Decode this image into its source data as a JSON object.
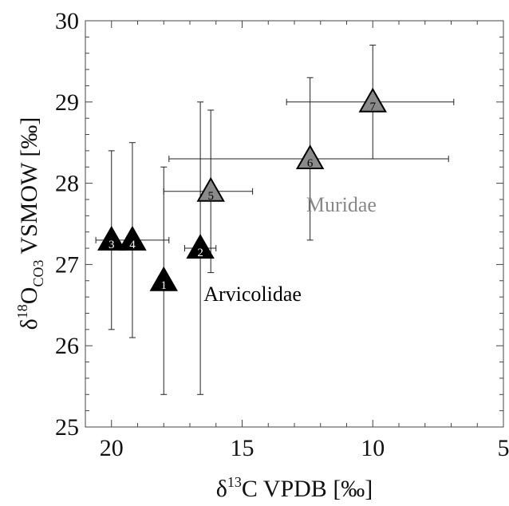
{
  "chart_data": {
    "type": "scatter",
    "title": "",
    "xlabel": {
      "prefix": "δ",
      "sup": "13",
      "rest": "C VPDB [‰]"
    },
    "ylabel": {
      "prefix": "δ",
      "sup": "18",
      "mid": "O",
      "sub": "CO3",
      "rest": " VSMOW [‰]"
    },
    "xlim": [
      21,
      5
    ],
    "ylim": [
      25,
      30
    ],
    "x_reversed": true,
    "grid": false,
    "xticks": [
      "20",
      "15",
      "10",
      "5"
    ],
    "yticks": [
      "25",
      "26",
      "27",
      "28",
      "29",
      "30"
    ],
    "series": [
      {
        "name": "Arvicolidae",
        "color": "#000000",
        "label_color": "#ffffff",
        "points": [
          {
            "id": "1",
            "x": 18.0,
            "y": 26.8,
            "xerr": [
              17.8,
              18.2
            ],
            "yerr": [
              25.4,
              28.2
            ]
          },
          {
            "id": "2",
            "x": 16.6,
            "y": 27.2,
            "xerr": [
              16.0,
              17.2
            ],
            "yerr": [
              25.4,
              29.0
            ]
          },
          {
            "id": "3",
            "x": 20.0,
            "y": 27.3,
            "xerr": [
              19.8,
              20.2
            ],
            "yerr": [
              26.2,
              28.4
            ]
          },
          {
            "id": "4",
            "x": 19.2,
            "y": 27.3,
            "xerr": [
              17.8,
              20.6
            ],
            "yerr": [
              26.1,
              28.5
            ]
          }
        ]
      },
      {
        "name": "Muridae",
        "color": "#8a8a8a",
        "label_color": "#000000",
        "points": [
          {
            "id": "5",
            "x": 16.2,
            "y": 27.9,
            "xerr": [
              14.6,
              18.0
            ],
            "yerr": [
              26.9,
              28.9
            ]
          },
          {
            "id": "6",
            "x": 12.4,
            "y": 28.3,
            "xerr": [
              7.1,
              17.8
            ],
            "yerr": [
              27.3,
              29.3
            ]
          },
          {
            "id": "7",
            "x": 10.0,
            "y": 29.0,
            "xerr": [
              6.9,
              13.3
            ],
            "yerr": [
              28.3,
              29.7
            ]
          }
        ]
      }
    ],
    "annotations": [
      {
        "text": "Arvicolidae",
        "x": 14.6,
        "y": 26.55,
        "color": "#000000"
      },
      {
        "text": "Muridae",
        "x": 11.2,
        "y": 27.65,
        "color": "#888888"
      }
    ]
  }
}
